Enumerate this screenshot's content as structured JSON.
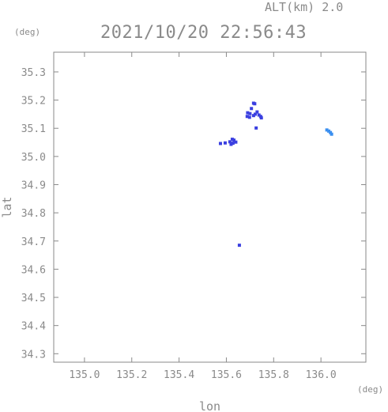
{
  "header": {
    "alt_label": "ALT(km) 2.0",
    "timestamp": "2021/10/20 22:56:43",
    "y_unit": "(deg)",
    "x_unit": "(deg)"
  },
  "chart_data": {
    "type": "scatter",
    "title": "2021/10/20 22:56:43",
    "subtitle": "ALT(km) 2.0",
    "xlabel": "lon",
    "ylabel": "lat",
    "x_unit": "(deg)",
    "y_unit": "(deg)",
    "xlim": [
      134.87,
      136.19
    ],
    "ylim": [
      34.27,
      35.37
    ],
    "x_ticks": [
      "135.0",
      "135.2",
      "135.4",
      "135.6",
      "135.8",
      "136.0"
    ],
    "y_ticks": [
      "34.3",
      "34.4",
      "34.5",
      "34.6",
      "34.7",
      "34.8",
      "34.9",
      "35.0",
      "35.1",
      "35.2",
      "35.3"
    ],
    "grid": false,
    "colors": {
      "dark_blue": "#3a3fe0",
      "light_blue": "#3a8ff0",
      "axis": "#8a8a8a"
    },
    "series": [
      {
        "color": "#3a3fe0",
        "points": [
          [
            135.715,
            35.189
          ],
          [
            135.72,
            35.187
          ],
          [
            135.69,
            35.155
          ],
          [
            135.7,
            35.152
          ],
          [
            135.688,
            35.142
          ],
          [
            135.698,
            35.139
          ],
          [
            135.715,
            35.145
          ],
          [
            135.722,
            35.15
          ],
          [
            135.73,
            35.158
          ],
          [
            135.738,
            35.147
          ],
          [
            135.745,
            35.142
          ],
          [
            135.748,
            35.137
          ],
          [
            135.706,
            35.17
          ],
          [
            135.625,
            35.061
          ],
          [
            135.632,
            35.058
          ],
          [
            135.615,
            35.052
          ],
          [
            135.628,
            35.047
          ],
          [
            135.64,
            35.051
          ],
          [
            135.62,
            35.043
          ],
          [
            135.575,
            35.046
          ],
          [
            135.595,
            35.048
          ],
          [
            135.726,
            35.101
          ],
          [
            135.655,
            34.685
          ]
        ]
      },
      {
        "color": "#3a8ff0",
        "points": [
          [
            136.025,
            35.094
          ],
          [
            136.033,
            35.09
          ],
          [
            136.04,
            35.085
          ],
          [
            136.045,
            35.079
          ]
        ]
      }
    ]
  }
}
